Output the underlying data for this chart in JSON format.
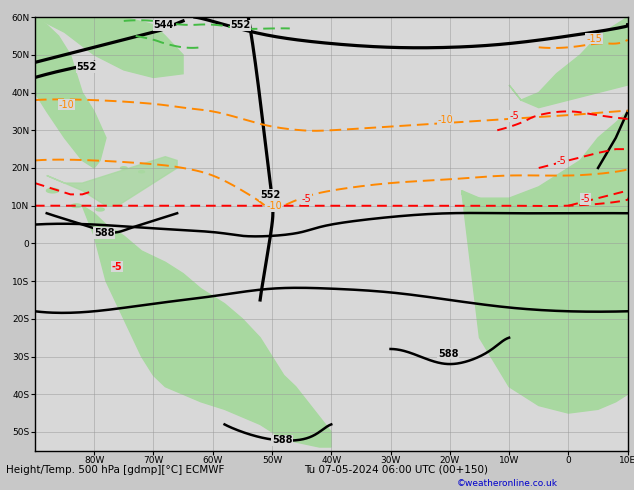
{
  "title_bottom": "Height/Temp. 500 hPa [gdmp][°C] ECMWF",
  "title_right": "Tu 07-05-2024 06:00 UTC (00+150)",
  "copyright": "©weatheronline.co.uk",
  "bg_color": "#c8c8c8",
  "ocean_color": "#d8d8d8",
  "land_color": "#a8d8a0",
  "grid_color": "#999999",
  "label_bg": "#d8d8d8",
  "figsize": [
    6.34,
    4.9
  ],
  "dpi": 100,
  "xlim": [
    -90,
    10
  ],
  "ylim": [
    -55,
    60
  ],
  "xticks": [
    -80,
    -70,
    -60,
    -50,
    -40,
    -30,
    -20,
    -10,
    0,
    10
  ],
  "yticks": [
    -50,
    -40,
    -30,
    -20,
    -10,
    0,
    10,
    20,
    30,
    40,
    50,
    60
  ],
  "xtick_labels": [
    "80W",
    "70W",
    "60W",
    "50W",
    "40W",
    "30W",
    "20W",
    "10W",
    "0",
    "10E"
  ],
  "ytick_labels": [
    "50S",
    "40S",
    "30S",
    "20S",
    "10S",
    "0",
    "10N",
    "20N",
    "30N",
    "40N",
    "50N",
    "60N"
  ],
  "black_lw": 1.8,
  "orange_color": "#FF8800",
  "red_color": "#FF0000",
  "green_color": "#44BB44",
  "orange_lw": 1.4,
  "red_lw": 1.4,
  "green_lw": 1.4,
  "label_fontsize": 7,
  "tick_fontsize": 6.5
}
